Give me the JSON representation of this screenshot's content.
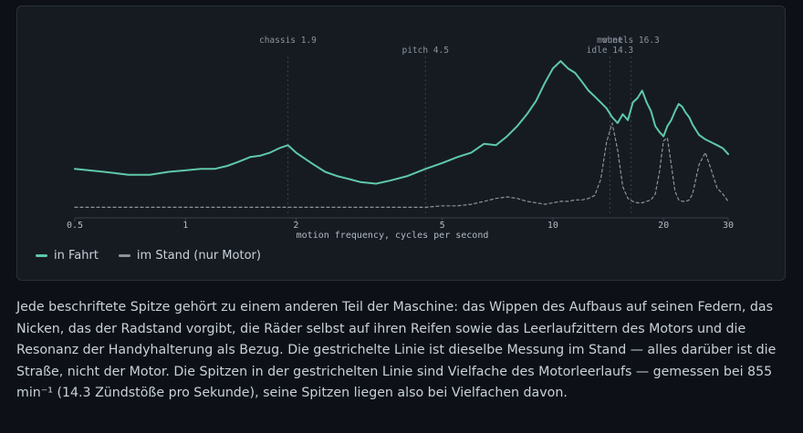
{
  "chart_data": {
    "type": "line",
    "title": "",
    "xlabel": "motion frequency, cycles per second",
    "ylabel": "",
    "xscale": "log",
    "xlim": [
      0.5,
      30
    ],
    "x_ticks": [
      0.5,
      1,
      2,
      5,
      10,
      20,
      30
    ],
    "x_tick_labels": [
      "0.5",
      "1",
      "2",
      "5",
      "10",
      "20",
      "30"
    ],
    "ylim": [
      0,
      1
    ],
    "grid": false,
    "legend_position": "bottom-left",
    "x": [
      0.5,
      0.6,
      0.7,
      0.8,
      0.9,
      1.0,
      1.1,
      1.2,
      1.3,
      1.4,
      1.5,
      1.6,
      1.7,
      1.8,
      1.9,
      2.0,
      2.2,
      2.4,
      2.6,
      2.8,
      3.0,
      3.3,
      3.6,
      4.0,
      4.5,
      5.0,
      5.5,
      6.0,
      6.5,
      7.0,
      7.5,
      8.0,
      8.5,
      9.0,
      9.5,
      10.0,
      10.5,
      11.0,
      11.5,
      12.0,
      12.5,
      13.0,
      13.5,
      14.0,
      14.5,
      15.0,
      15.5,
      16.0,
      16.5,
      17.0,
      17.5,
      18.0,
      18.5,
      19.0,
      19.5,
      20.0,
      20.5,
      21.0,
      21.5,
      22.0,
      22.5,
      23.0,
      23.5,
      24.0,
      25.0,
      26.0,
      27.0,
      28.0,
      29.0,
      30.0
    ],
    "series": [
      {
        "name": "in Fahrt",
        "color": "#5fc9a8",
        "style": "solid",
        "values": [
          0.27,
          0.25,
          0.23,
          0.23,
          0.25,
          0.26,
          0.27,
          0.27,
          0.29,
          0.32,
          0.35,
          0.36,
          0.38,
          0.41,
          0.43,
          0.38,
          0.31,
          0.25,
          0.22,
          0.2,
          0.18,
          0.17,
          0.19,
          0.22,
          0.27,
          0.31,
          0.35,
          0.38,
          0.44,
          0.43,
          0.49,
          0.56,
          0.64,
          0.73,
          0.85,
          0.95,
          1.0,
          0.95,
          0.92,
          0.86,
          0.8,
          0.76,
          0.72,
          0.68,
          0.62,
          0.58,
          0.64,
          0.6,
          0.72,
          0.75,
          0.8,
          0.72,
          0.66,
          0.56,
          0.52,
          0.49,
          0.56,
          0.6,
          0.66,
          0.71,
          0.69,
          0.65,
          0.62,
          0.57,
          0.5,
          0.47,
          0.45,
          0.43,
          0.41,
          0.37
        ]
      },
      {
        "name": "im Stand (nur Motor)",
        "color": "#8b949e",
        "style": "dashed",
        "values": [
          0.01,
          0.01,
          0.01,
          0.01,
          0.01,
          0.01,
          0.01,
          0.01,
          0.01,
          0.01,
          0.01,
          0.01,
          0.01,
          0.01,
          0.01,
          0.01,
          0.01,
          0.01,
          0.01,
          0.01,
          0.01,
          0.01,
          0.01,
          0.01,
          0.01,
          0.02,
          0.02,
          0.03,
          0.05,
          0.07,
          0.08,
          0.07,
          0.05,
          0.04,
          0.03,
          0.04,
          0.05,
          0.05,
          0.06,
          0.06,
          0.07,
          0.09,
          0.2,
          0.45,
          0.58,
          0.4,
          0.15,
          0.07,
          0.05,
          0.04,
          0.04,
          0.05,
          0.06,
          0.1,
          0.25,
          0.46,
          0.48,
          0.3,
          0.12,
          0.06,
          0.05,
          0.05,
          0.06,
          0.1,
          0.3,
          0.38,
          0.26,
          0.14,
          0.1,
          0.05
        ]
      }
    ],
    "annotations": [
      {
        "label": "chassis 1.9",
        "x": 1.9
      },
      {
        "label": "pitch 4.5",
        "x": 4.5
      },
      {
        "label": "idle 14.3",
        "x": 14.3
      },
      {
        "label": "wheels 16.3",
        "x": 16.3
      },
      {
        "label": "mount",
        "x": 14.3
      }
    ]
  },
  "legend": {
    "items": [
      {
        "label": "in Fahrt",
        "color": "#5fc9a8"
      },
      {
        "label": "im Stand (nur Motor)",
        "color": "#8b949e"
      }
    ]
  },
  "caption": {
    "text": "Jede beschriftete Spitze gehört zu einem anderen Teil der Maschine: das Wippen des Aufbaus auf seinen Federn, das Nicken, das der Radstand vorgibt, die Räder selbst auf ihren Reifen sowie das Leerlaufzittern des Motors und die Resonanz der Handyhalterung als Bezug. Die gestrichelte Linie ist dieselbe Messung im Stand — alles darüber ist die Straße, nicht der Motor. Die Spitzen in der gestrichelten Linie sind Vielfache des Motorleerlaufs — gemessen bei 855 min⁻¹ (14.3 Zündstöße pro Sekunde), seine Spitzen liegen also bei Vielfachen davon."
  }
}
